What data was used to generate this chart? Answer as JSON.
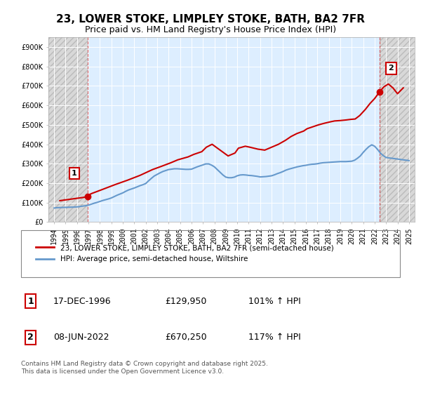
{
  "title": "23, LOWER STOKE, LIMPLEY STOKE, BATH, BA2 7FR",
  "subtitle": "Price paid vs. HM Land Registry's House Price Index (HPI)",
  "xlim": [
    1993.5,
    2025.5
  ],
  "ylim": [
    0,
    950000
  ],
  "yticks": [
    0,
    100000,
    200000,
    300000,
    400000,
    500000,
    600000,
    700000,
    800000,
    900000
  ],
  "ytick_labels": [
    "£0",
    "£100K",
    "£200K",
    "£300K",
    "£400K",
    "£500K",
    "£600K",
    "£700K",
    "£800K",
    "£900K"
  ],
  "xticks": [
    1994,
    1995,
    1996,
    1997,
    1998,
    1999,
    2000,
    2001,
    2002,
    2003,
    2004,
    2005,
    2006,
    2007,
    2008,
    2009,
    2010,
    2011,
    2012,
    2013,
    2014,
    2015,
    2016,
    2017,
    2018,
    2019,
    2020,
    2021,
    2022,
    2023,
    2024,
    2025
  ],
  "hpi_color": "#6699cc",
  "price_color": "#cc0000",
  "marker1_date": 1996.96,
  "marker1_price": 129950,
  "marker1_label": "1",
  "marker2_date": 2022.44,
  "marker2_price": 670250,
  "marker2_label": "2",
  "annotation1_date": "17-DEC-1996",
  "annotation1_price": "£129,950",
  "annotation1_hpi": "101% ↑ HPI",
  "annotation2_date": "08-JUN-2022",
  "annotation2_price": "£670,250",
  "annotation2_hpi": "117% ↑ HPI",
  "legend_line1": "23, LOWER STOKE, LIMPLEY STOKE, BATH, BA2 7FR (semi-detached house)",
  "legend_line2": "HPI: Average price, semi-detached house, Wiltshire",
  "footer": "Contains HM Land Registry data © Crown copyright and database right 2025.\nThis data is licensed under the Open Government Licence v3.0.",
  "bg_color": "#ffffff",
  "plot_bg_color": "#ddeeff",
  "hatch_region_color": "#cccccc",
  "grid_color": "#ffffff",
  "title_fontsize": 11,
  "subtitle_fontsize": 9,
  "axis_fontsize": 7,
  "hpi_data_x": [
    1994.0,
    1994.25,
    1994.5,
    1994.75,
    1995.0,
    1995.25,
    1995.5,
    1995.75,
    1996.0,
    1996.25,
    1996.5,
    1996.75,
    1997.0,
    1997.25,
    1997.5,
    1997.75,
    1998.0,
    1998.25,
    1998.5,
    1998.75,
    1999.0,
    1999.25,
    1999.5,
    1999.75,
    2000.0,
    2000.25,
    2000.5,
    2000.75,
    2001.0,
    2001.25,
    2001.5,
    2001.75,
    2002.0,
    2002.25,
    2002.5,
    2002.75,
    2003.0,
    2003.25,
    2003.5,
    2003.75,
    2004.0,
    2004.25,
    2004.5,
    2004.75,
    2005.0,
    2005.25,
    2005.5,
    2005.75,
    2006.0,
    2006.25,
    2006.5,
    2006.75,
    2007.0,
    2007.25,
    2007.5,
    2007.75,
    2008.0,
    2008.25,
    2008.5,
    2008.75,
    2009.0,
    2009.25,
    2009.5,
    2009.75,
    2010.0,
    2010.25,
    2010.5,
    2010.75,
    2011.0,
    2011.25,
    2011.5,
    2011.75,
    2012.0,
    2012.25,
    2012.5,
    2012.75,
    2013.0,
    2013.25,
    2013.5,
    2013.75,
    2014.0,
    2014.25,
    2014.5,
    2014.75,
    2015.0,
    2015.25,
    2015.5,
    2015.75,
    2016.0,
    2016.25,
    2016.5,
    2016.75,
    2017.0,
    2017.25,
    2017.5,
    2017.75,
    2018.0,
    2018.25,
    2018.5,
    2018.75,
    2019.0,
    2019.25,
    2019.5,
    2019.75,
    2020.0,
    2020.25,
    2020.5,
    2020.75,
    2021.0,
    2021.25,
    2021.5,
    2021.75,
    2022.0,
    2022.25,
    2022.5,
    2022.75,
    2023.0,
    2023.25,
    2023.5,
    2023.75,
    2024.0,
    2024.25,
    2024.5,
    2024.75,
    2025.0
  ],
  "hpi_data_y": [
    72000,
    74000,
    74500,
    75000,
    75500,
    76000,
    76500,
    77000,
    78000,
    80000,
    82000,
    84000,
    87000,
    92000,
    97000,
    101000,
    106000,
    111000,
    115000,
    119000,
    124000,
    131000,
    138000,
    144000,
    150000,
    158000,
    165000,
    170000,
    175000,
    181000,
    187000,
    192000,
    198000,
    212000,
    225000,
    237000,
    245000,
    253000,
    260000,
    265000,
    270000,
    272000,
    274000,
    274000,
    273000,
    272000,
    271000,
    271000,
    272000,
    278000,
    284000,
    289000,
    294000,
    299000,
    299000,
    293000,
    284000,
    270000,
    256000,
    242000,
    231000,
    228000,
    228000,
    231000,
    238000,
    242000,
    243000,
    242000,
    240000,
    239000,
    237000,
    235000,
    232000,
    233000,
    234000,
    236000,
    238000,
    243000,
    249000,
    254000,
    260000,
    267000,
    272000,
    276000,
    280000,
    284000,
    287000,
    290000,
    292000,
    295000,
    297000,
    298000,
    300000,
    303000,
    305000,
    306000,
    307000,
    308000,
    309000,
    310000,
    311000,
    311000,
    311000,
    312000,
    313000,
    318000,
    328000,
    340000,
    358000,
    374000,
    388000,
    397000,
    390000,
    374000,
    355000,
    342000,
    332000,
    330000,
    328000,
    326000,
    324000,
    322000,
    320000,
    318000,
    316000
  ],
  "price_data_x": [
    1994.5,
    1996.96,
    1997.2,
    1998.1,
    1999.3,
    2000.4,
    2001.5,
    2002.6,
    2003.3,
    2004.2,
    2004.8,
    2005.1,
    2005.7,
    2006.2,
    2006.9,
    2007.3,
    2007.8,
    2008.5,
    2009.2,
    2009.8,
    2010.1,
    2010.7,
    2011.1,
    2011.8,
    2012.4,
    2013.0,
    2013.6,
    2014.2,
    2014.7,
    2015.2,
    2015.8,
    2016.1,
    2016.6,
    2017.1,
    2017.6,
    2018.1,
    2018.5,
    2019.0,
    2019.5,
    2019.9,
    2020.3,
    2020.7,
    2021.2,
    2021.6,
    2022.0,
    2022.44,
    2022.8,
    2023.2,
    2023.6,
    2024.0,
    2024.5
  ],
  "price_data_y": [
    110000,
    129950,
    145000,
    165000,
    192000,
    215000,
    240000,
    270000,
    285000,
    305000,
    320000,
    325000,
    335000,
    348000,
    362000,
    385000,
    400000,
    370000,
    340000,
    355000,
    380000,
    390000,
    385000,
    375000,
    370000,
    385000,
    400000,
    420000,
    440000,
    455000,
    468000,
    480000,
    490000,
    500000,
    508000,
    515000,
    520000,
    522000,
    525000,
    528000,
    530000,
    548000,
    580000,
    610000,
    635000,
    670250,
    695000,
    710000,
    690000,
    660000,
    690000
  ]
}
